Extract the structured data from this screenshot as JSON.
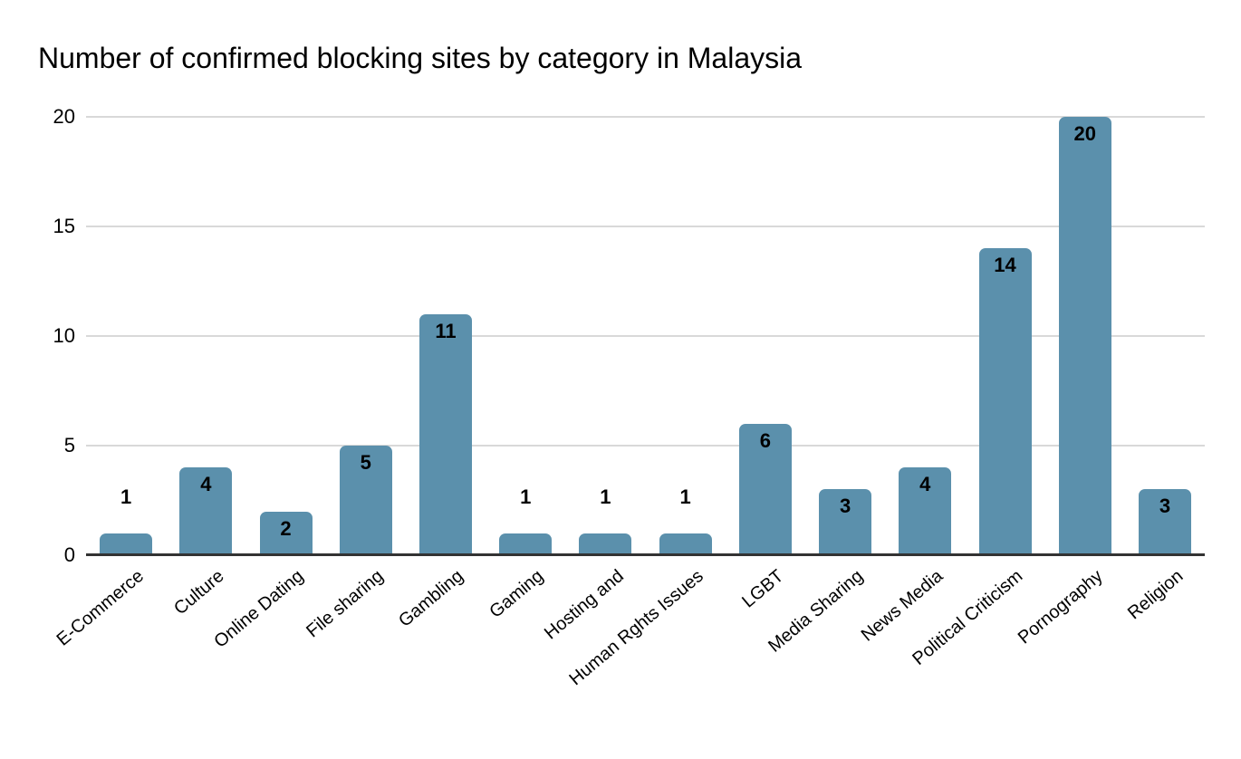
{
  "chart_data": {
    "type": "bar",
    "title": "Number of confirmed blocking sites by category in Malaysia",
    "categories": [
      "E-Commerce",
      "Culture",
      "Online Dating",
      "File sharing",
      "Gambling",
      "Gaming",
      "Hosting and",
      "Human Rghts Issues",
      "LGBT",
      "Media Sharing",
      "News Media",
      "Political Criticism",
      "Pornography",
      "Religion"
    ],
    "values": [
      1,
      4,
      2,
      5,
      11,
      1,
      1,
      1,
      6,
      3,
      4,
      14,
      20,
      3
    ],
    "data_labels": [
      1,
      4,
      2,
      5,
      11,
      1,
      1,
      1,
      6,
      3,
      4,
      14,
      20,
      3
    ],
    "xlabel": "",
    "ylabel": "",
    "ylim": [
      0,
      20
    ],
    "yticks": [
      0,
      5,
      10,
      15,
      20
    ],
    "grid": true,
    "legend": false,
    "bar_color": "#5b90ac",
    "gridline_color": "#d9d9d9",
    "axis_line_color": "#333333",
    "title_color": "#000000",
    "tick_label_color": "#000000",
    "data_label_color": "#000000"
  }
}
